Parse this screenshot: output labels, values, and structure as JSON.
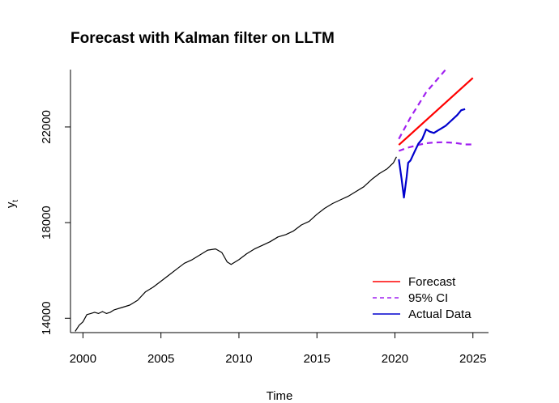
{
  "chart_data": {
    "type": "line",
    "title": "Forecast with Kalman filter on LLTM",
    "xlabel": "Time",
    "ylabel": "y",
    "ylabel_subscript": "t",
    "xlim": [
      1999.2,
      2026.0
    ],
    "ylim": [
      13400,
      24400
    ],
    "x_ticks": [
      2000,
      2005,
      2010,
      2015,
      2020,
      2025
    ],
    "y_ticks": [
      14000,
      18000,
      22000
    ],
    "legend": {
      "position": "bottom-right"
    },
    "series": [
      {
        "name": "",
        "color": "#000000",
        "style": "solid",
        "points": [
          [
            1999.5,
            13450
          ],
          [
            1999.75,
            13700
          ],
          [
            2000.0,
            13850
          ],
          [
            2000.25,
            14150
          ],
          [
            2000.5,
            14200
          ],
          [
            2000.75,
            14250
          ],
          [
            2001.0,
            14200
          ],
          [
            2001.25,
            14280
          ],
          [
            2001.5,
            14200
          ],
          [
            2001.75,
            14250
          ],
          [
            2002.0,
            14350
          ],
          [
            2002.5,
            14450
          ],
          [
            2003.0,
            14550
          ],
          [
            2003.5,
            14750
          ],
          [
            2004.0,
            15100
          ],
          [
            2004.5,
            15300
          ],
          [
            2005.0,
            15550
          ],
          [
            2005.5,
            15800
          ],
          [
            2006.0,
            16050
          ],
          [
            2006.5,
            16300
          ],
          [
            2007.0,
            16450
          ],
          [
            2007.5,
            16650
          ],
          [
            2008.0,
            16850
          ],
          [
            2008.5,
            16900
          ],
          [
            2008.9,
            16750
          ],
          [
            2009.25,
            16350
          ],
          [
            2009.5,
            16250
          ],
          [
            2010.0,
            16450
          ],
          [
            2010.5,
            16700
          ],
          [
            2011.0,
            16900
          ],
          [
            2011.5,
            17050
          ],
          [
            2012.0,
            17200
          ],
          [
            2012.5,
            17400
          ],
          [
            2013.0,
            17500
          ],
          [
            2013.5,
            17650
          ],
          [
            2014.0,
            17900
          ],
          [
            2014.5,
            18050
          ],
          [
            2015.0,
            18350
          ],
          [
            2015.5,
            18600
          ],
          [
            2016.0,
            18800
          ],
          [
            2016.5,
            18950
          ],
          [
            2017.0,
            19100
          ],
          [
            2017.5,
            19300
          ],
          [
            2018.0,
            19500
          ],
          [
            2018.5,
            19800
          ],
          [
            2019.0,
            20050
          ],
          [
            2019.5,
            20250
          ],
          [
            2019.9,
            20500
          ],
          [
            2020.1,
            20750
          ]
        ]
      },
      {
        "name": "Forecast",
        "color": "#ff0000",
        "style": "solid",
        "points": [
          [
            2020.25,
            21250
          ],
          [
            2025.0,
            24050
          ]
        ]
      },
      {
        "name": "95% CI",
        "color": "#a020f0",
        "style": "dashed",
        "points": [
          [
            2020.25,
            21500
          ],
          [
            2021.0,
            22400
          ],
          [
            2022.0,
            23450
          ],
          [
            2023.25,
            24400
          ]
        ]
      },
      {
        "name": "",
        "color": "#a020f0",
        "style": "dashed",
        "points": [
          [
            2020.25,
            21000
          ],
          [
            2020.75,
            21120
          ],
          [
            2021.5,
            21250
          ],
          [
            2022.0,
            21320
          ],
          [
            2022.5,
            21350
          ],
          [
            2023.0,
            21360
          ],
          [
            2023.5,
            21350
          ],
          [
            2024.0,
            21320
          ],
          [
            2024.5,
            21270
          ],
          [
            2025.0,
            21270
          ]
        ]
      },
      {
        "name": "Actual Data",
        "color": "#0000cd",
        "style": "solid",
        "points": [
          [
            2020.25,
            20650
          ],
          [
            2020.42,
            19850
          ],
          [
            2020.58,
            19050
          ],
          [
            2020.75,
            19900
          ],
          [
            2020.85,
            20500
          ],
          [
            2021.0,
            20600
          ],
          [
            2021.25,
            20950
          ],
          [
            2021.5,
            21300
          ],
          [
            2021.75,
            21500
          ],
          [
            2022.0,
            21900
          ],
          [
            2022.25,
            21800
          ],
          [
            2022.5,
            21750
          ],
          [
            2022.75,
            21850
          ],
          [
            2023.0,
            21950
          ],
          [
            2023.25,
            22050
          ],
          [
            2023.5,
            22200
          ],
          [
            2023.75,
            22350
          ],
          [
            2024.0,
            22500
          ],
          [
            2024.25,
            22700
          ],
          [
            2024.5,
            22750
          ]
        ]
      }
    ]
  }
}
